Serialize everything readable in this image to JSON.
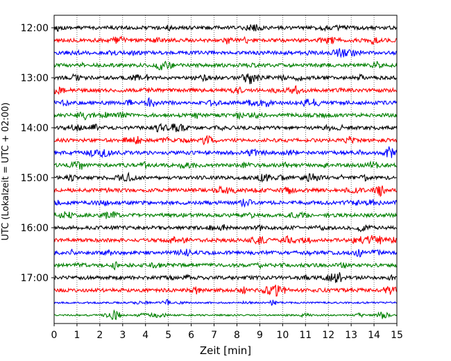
{
  "chart_data": {
    "type": "line",
    "subtype": "helicorder-seismogram",
    "xlabel": "Zeit  [min]",
    "ylabel": "UTC (Lokalzeit = UTC + 02:00)",
    "xlim": [
      0,
      15
    ],
    "x_ticks": [
      "0",
      "1",
      "2",
      "3",
      "4",
      "5",
      "6",
      "7",
      "8",
      "9",
      "10",
      "11",
      "12",
      "13",
      "14",
      "15"
    ],
    "y_tick_labels": [
      "12:00",
      "13:00",
      "14:00",
      "15:00",
      "16:00",
      "17:00"
    ],
    "grid": "vertical dotted at each minute",
    "trace_colors": [
      "#000000",
      "#ff0000",
      "#0000ff",
      "#008000"
    ],
    "traces": [
      {
        "start": "12:00",
        "color": "#000000"
      },
      {
        "start": "12:15",
        "color": "#ff0000"
      },
      {
        "start": "12:30",
        "color": "#0000ff"
      },
      {
        "start": "12:45",
        "color": "#008000"
      },
      {
        "start": "13:00",
        "color": "#000000"
      },
      {
        "start": "13:15",
        "color": "#ff0000"
      },
      {
        "start": "13:30",
        "color": "#0000ff"
      },
      {
        "start": "13:45",
        "color": "#008000"
      },
      {
        "start": "14:00",
        "color": "#000000"
      },
      {
        "start": "14:15",
        "color": "#ff0000"
      },
      {
        "start": "14:30",
        "color": "#0000ff"
      },
      {
        "start": "14:45",
        "color": "#008000"
      },
      {
        "start": "15:00",
        "color": "#000000"
      },
      {
        "start": "15:15",
        "color": "#ff0000"
      },
      {
        "start": "15:30",
        "color": "#0000ff"
      },
      {
        "start": "15:45",
        "color": "#008000"
      },
      {
        "start": "16:00",
        "color": "#000000"
      },
      {
        "start": "16:15",
        "color": "#ff0000"
      },
      {
        "start": "16:30",
        "color": "#0000ff"
      },
      {
        "start": "16:45",
        "color": "#008000"
      },
      {
        "start": "17:00",
        "color": "#000000"
      },
      {
        "start": "17:15",
        "color": "#ff0000"
      },
      {
        "start": "17:30",
        "color": "#0000ff"
      },
      {
        "start": "17:45",
        "color": "#008000"
      }
    ]
  }
}
